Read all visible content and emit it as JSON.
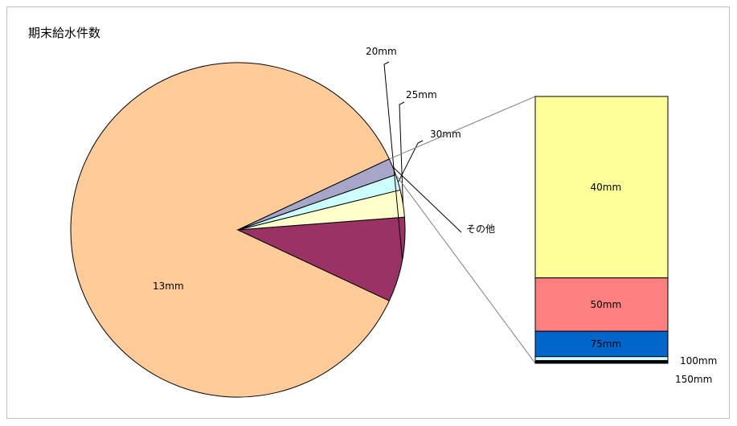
{
  "chart_data": {
    "type": "pie",
    "title": "期末給水件数",
    "pie": {
      "slices": [
        {
          "label": "13mm",
          "value": 85.2,
          "color": "#FFCC99"
        },
        {
          "label": "20mm",
          "value": 8.1,
          "color": "#993366"
        },
        {
          "label": "25mm",
          "value": 2.6,
          "color": "#FFFFCC"
        },
        {
          "label": "30mm",
          "value": 1.5,
          "color": "#CCFFFF"
        },
        {
          "label": "その他",
          "value": 1.6,
          "color": "#A6A6C8"
        }
      ]
    },
    "breakdown": {
      "of": "その他",
      "segments": [
        {
          "label": "40mm",
          "value": 68.0,
          "color": "#FFFF99"
        },
        {
          "label": "50mm",
          "value": 20.0,
          "color": "#FF8080"
        },
        {
          "label": "75mm",
          "value": 9.5,
          "color": "#0066CC"
        },
        {
          "label": "100mm",
          "value": 1.5,
          "color": "#CCFFFF"
        },
        {
          "label": "150mm",
          "value": 1.0,
          "color": "#000000"
        }
      ]
    }
  }
}
